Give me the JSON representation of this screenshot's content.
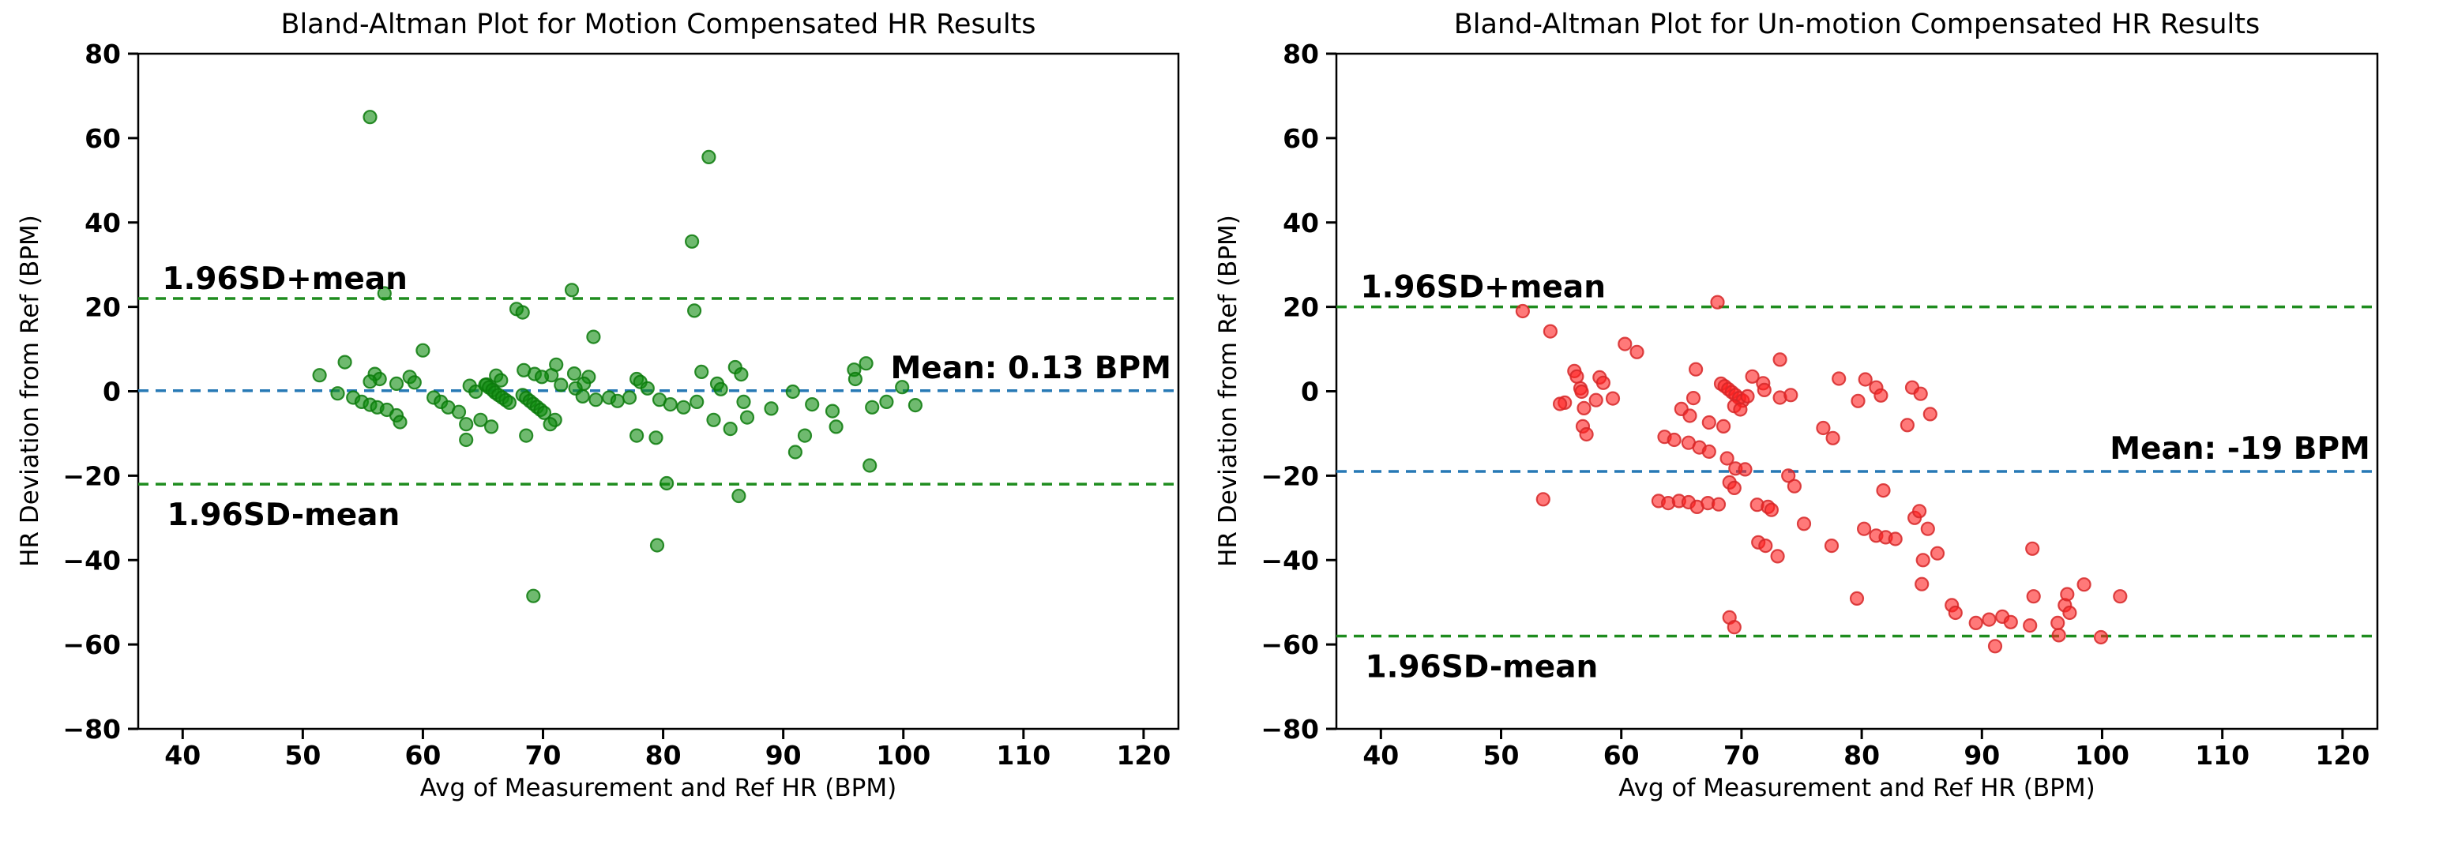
{
  "chart_data": [
    {
      "type": "scatter",
      "title": "Bland-Altman Plot for Motion Compensated HR Results",
      "xlabel": "Avg of Measurement and Ref HR (BPM)",
      "ylabel": "HR Deviation from Ref (BPM)",
      "xlim": [
        36.3,
        122.9
      ],
      "ylim": [
        -80,
        80
      ],
      "xticks": [
        40,
        50,
        60,
        70,
        80,
        90,
        100,
        110,
        120
      ],
      "yticks": [
        -80,
        -60,
        -40,
        -20,
        0,
        20,
        40,
        60,
        80
      ],
      "grid": false,
      "legend": null,
      "colors": {
        "marker_fill": "#0f8c0f",
        "marker_edge": "#0c7a0c",
        "mean_line": "#2779b5",
        "limit_line": "#1e8c1e",
        "axis": "#000000",
        "text": "#000000"
      },
      "lines": {
        "upper": {
          "value": 22,
          "label": "1.96SD+mean"
        },
        "mean": {
          "value": 0.13,
          "label": "Mean: 0.13 BPM"
        },
        "lower": {
          "value": -22,
          "label": "1.96SD-mean"
        }
      },
      "points": [
        [
          55.6,
          65
        ],
        [
          83.8,
          55.5
        ],
        [
          82.4,
          35.5
        ],
        [
          56.8,
          23.2
        ],
        [
          72.4,
          24
        ],
        [
          67.8,
          19.5
        ],
        [
          68.3,
          18.7
        ],
        [
          82.6,
          19.1
        ],
        [
          74.2,
          12.9
        ],
        [
          60,
          9.7
        ],
        [
          53.5,
          6.9
        ],
        [
          96.9,
          6.6
        ],
        [
          95.9,
          5.1
        ],
        [
          71.1,
          6.3
        ],
        [
          69.3,
          4.1
        ],
        [
          70.7,
          3.8
        ],
        [
          72.6,
          4.2
        ],
        [
          83.2,
          4.6
        ],
        [
          86,
          5.7
        ],
        [
          86.5,
          4
        ],
        [
          51.4,
          3.8
        ],
        [
          56,
          4.1
        ],
        [
          56.4,
          2.9
        ],
        [
          55.6,
          2.3
        ],
        [
          58.9,
          3.4
        ],
        [
          59.3,
          2.1
        ],
        [
          57.8,
          1.8
        ],
        [
          68.4,
          5
        ],
        [
          69.9,
          3.4
        ],
        [
          66.1,
          3.7
        ],
        [
          66.5,
          2.6
        ],
        [
          73.8,
          3.4
        ],
        [
          73.4,
          1.8
        ],
        [
          77.8,
          2.9
        ],
        [
          78.1,
          2.2
        ],
        [
          78.7,
          0.7
        ],
        [
          84.5,
          1.8
        ],
        [
          84.8,
          0.5
        ],
        [
          99.9,
          1
        ],
        [
          90.8,
          -0.1
        ],
        [
          96,
          2.9
        ],
        [
          63.9,
          1.3
        ],
        [
          64.4,
          -0.1
        ],
        [
          65.3,
          1.6
        ],
        [
          65.2,
          1.5
        ],
        [
          65.5,
          0.9
        ],
        [
          65.8,
          0.3
        ],
        [
          66,
          -0.3
        ],
        [
          66.3,
          -0.9
        ],
        [
          66.6,
          -1.5
        ],
        [
          66.9,
          -2.1
        ],
        [
          67.2,
          -2.7
        ],
        [
          68.3,
          -0.9
        ],
        [
          68.6,
          -1.6
        ],
        [
          68.9,
          -2.3
        ],
        [
          69.2,
          -3
        ],
        [
          69.5,
          -3.7
        ],
        [
          69.8,
          -4.4
        ],
        [
          70.1,
          -5.1
        ],
        [
          71.5,
          1.5
        ],
        [
          72.7,
          0.7
        ],
        [
          73.3,
          -1.2
        ],
        [
          74.4,
          -2
        ],
        [
          75.5,
          -1.5
        ],
        [
          76.2,
          -2.3
        ],
        [
          77.2,
          -1.5
        ],
        [
          79.7,
          -2
        ],
        [
          80.6,
          -3.1
        ],
        [
          81.7,
          -3.8
        ],
        [
          82.8,
          -2.5
        ],
        [
          86.7,
          -2.5
        ],
        [
          89,
          -4.1
        ],
        [
          92.4,
          -3.1
        ],
        [
          94.1,
          -4.7
        ],
        [
          97.4,
          -3.8
        ],
        [
          98.6,
          -2.5
        ],
        [
          101,
          -3.3
        ],
        [
          52.9,
          -0.5
        ],
        [
          54.2,
          -1.5
        ],
        [
          54.9,
          -2.5
        ],
        [
          55.6,
          -3.2
        ],
        [
          56.2,
          -3.8
        ],
        [
          57,
          -4.4
        ],
        [
          57.8,
          -5.7
        ],
        [
          60.9,
          -1.5
        ],
        [
          61.5,
          -2.5
        ],
        [
          62.1,
          -3.8
        ],
        [
          63,
          -4.9
        ],
        [
          63.6,
          -7.8
        ],
        [
          64.8,
          -6.8
        ],
        [
          65.7,
          -8.4
        ],
        [
          58.1,
          -7.3
        ],
        [
          71,
          -6.8
        ],
        [
          70.6,
          -7.8
        ],
        [
          84.2,
          -6.8
        ],
        [
          85.6,
          -8.9
        ],
        [
          87,
          -6.2
        ],
        [
          77.8,
          -10.5
        ],
        [
          79.4,
          -11
        ],
        [
          63.6,
          -11.5
        ],
        [
          68.6,
          -10.5
        ],
        [
          91.8,
          -10.5
        ],
        [
          91,
          -14.4
        ],
        [
          94.4,
          -8.4
        ],
        [
          97.2,
          -17.6
        ],
        [
          80.3,
          -21.8
        ],
        [
          86.3,
          -24.8
        ],
        [
          79.5,
          -36.5
        ],
        [
          69.2,
          -48.5
        ]
      ]
    },
    {
      "type": "scatter",
      "title": "Bland-Altman Plot for Un-motion Compensated HR Results",
      "xlabel": "Avg of Measurement and Ref HR (BPM)",
      "ylabel": "HR Deviation from Ref (BPM)",
      "xlim": [
        36.3,
        122.9
      ],
      "ylim": [
        -80,
        80
      ],
      "xticks": [
        40,
        50,
        60,
        70,
        80,
        90,
        100,
        110,
        120
      ],
      "yticks": [
        -80,
        -60,
        -40,
        -20,
        0,
        20,
        40,
        60,
        80
      ],
      "grid": false,
      "legend": null,
      "colors": {
        "marker_fill": "#ff1f1f",
        "marker_edge": "#d62728",
        "mean_line": "#2779b5",
        "limit_line": "#1e8c1e",
        "axis": "#000000",
        "text": "#000000"
      },
      "lines": {
        "upper": {
          "value": 20,
          "label": "1.96SD+mean"
        },
        "mean": {
          "value": -19,
          "label": "Mean: -19 BPM"
        },
        "lower": {
          "value": -58,
          "label": "1.96SD-mean"
        }
      },
      "points": [
        [
          68,
          21.1
        ],
        [
          51.8,
          19
        ],
        [
          54.1,
          14.2
        ],
        [
          60.3,
          11.2
        ],
        [
          61.3,
          9.3
        ],
        [
          73.2,
          7.5
        ],
        [
          66.2,
          5.2
        ],
        [
          56.1,
          4.8
        ],
        [
          56.3,
          3.5
        ],
        [
          58.2,
          3.3
        ],
        [
          58.5,
          2
        ],
        [
          56.6,
          0.7
        ],
        [
          56.7,
          -0.1
        ],
        [
          55.3,
          -2.7
        ],
        [
          56.9,
          -4
        ],
        [
          54.9,
          -3
        ],
        [
          57.9,
          -2.1
        ],
        [
          59.3,
          -1.7
        ],
        [
          68.3,
          1.8
        ],
        [
          68.6,
          1.2
        ],
        [
          68.9,
          0.5
        ],
        [
          69.2,
          -0.2
        ],
        [
          69.5,
          -0.9
        ],
        [
          69.8,
          -1.6
        ],
        [
          70.1,
          -2.2
        ],
        [
          70.9,
          3.5
        ],
        [
          71.8,
          1.9
        ],
        [
          71.9,
          0.3
        ],
        [
          70.5,
          -1.2
        ],
        [
          69.4,
          -3.5
        ],
        [
          69.9,
          -4.3
        ],
        [
          73.2,
          -1.5
        ],
        [
          74.1,
          -0.9
        ],
        [
          66,
          -1.6
        ],
        [
          65,
          -4.2
        ],
        [
          65.7,
          -5.8
        ],
        [
          67.3,
          -7.4
        ],
        [
          68.5,
          -8.3
        ],
        [
          63.6,
          -10.8
        ],
        [
          64.4,
          -11.5
        ],
        [
          65.6,
          -12.2
        ],
        [
          66.5,
          -13.3
        ],
        [
          67.3,
          -14.3
        ],
        [
          68.8,
          -15.9
        ],
        [
          69.5,
          -18.3
        ],
        [
          70.3,
          -18.5
        ],
        [
          76.8,
          -8.7
        ],
        [
          77.6,
          -11.1
        ],
        [
          78.1,
          3
        ],
        [
          80.3,
          2.8
        ],
        [
          81.2,
          0.9
        ],
        [
          81.6,
          -1
        ],
        [
          79.7,
          -2.3
        ],
        [
          84.2,
          0.9
        ],
        [
          84.9,
          -0.6
        ],
        [
          85.7,
          -5.4
        ],
        [
          83.8,
          -8
        ],
        [
          73.9,
          -20
        ],
        [
          74.4,
          -22.5
        ],
        [
          69,
          -21.6
        ],
        [
          69.4,
          -22.9
        ],
        [
          63.1,
          -26
        ],
        [
          63.9,
          -26.5
        ],
        [
          64.8,
          -26
        ],
        [
          65.6,
          -26.3
        ],
        [
          66.3,
          -27.4
        ],
        [
          67.2,
          -26.5
        ],
        [
          68.1,
          -26.8
        ],
        [
          53.5,
          -25.6
        ],
        [
          71.3,
          -26.9
        ],
        [
          72.2,
          -27.4
        ],
        [
          72.5,
          -28.1
        ],
        [
          81.8,
          -23.5
        ],
        [
          56.8,
          -8.3
        ],
        [
          57.1,
          -10.2
        ],
        [
          71.4,
          -35.8
        ],
        [
          72,
          -36.6
        ],
        [
          73,
          -39.1
        ],
        [
          75.2,
          -31.4
        ],
        [
          77.5,
          -36.6
        ],
        [
          80.2,
          -32.6
        ],
        [
          81.2,
          -34.2
        ],
        [
          82,
          -34.6
        ],
        [
          82.8,
          -35
        ],
        [
          84.4,
          -30
        ],
        [
          84.8,
          -28.4
        ],
        [
          85.5,
          -32.6
        ],
        [
          86.3,
          -38.4
        ],
        [
          85,
          -45.7
        ],
        [
          79.6,
          -49.1
        ],
        [
          87.5,
          -50.7
        ],
        [
          87.8,
          -52.5
        ],
        [
          89.5,
          -54.9
        ],
        [
          90.6,
          -54.1
        ],
        [
          91.7,
          -53.4
        ],
        [
          92.4,
          -54.7
        ],
        [
          94.3,
          -48.6
        ],
        [
          94,
          -55.5
        ],
        [
          96.3,
          -54.9
        ],
        [
          96.9,
          -50.7
        ],
        [
          97.3,
          -52.5
        ],
        [
          97.1,
          -48.1
        ],
        [
          98.5,
          -45.8
        ],
        [
          101.5,
          -48.6
        ],
        [
          91.1,
          -60.4
        ],
        [
          96.4,
          -57.8
        ],
        [
          99.9,
          -58.3
        ],
        [
          69,
          -53.6
        ],
        [
          69.4,
          -55.9
        ],
        [
          94.2,
          -37.3
        ],
        [
          85.1,
          -40
        ]
      ]
    }
  ]
}
